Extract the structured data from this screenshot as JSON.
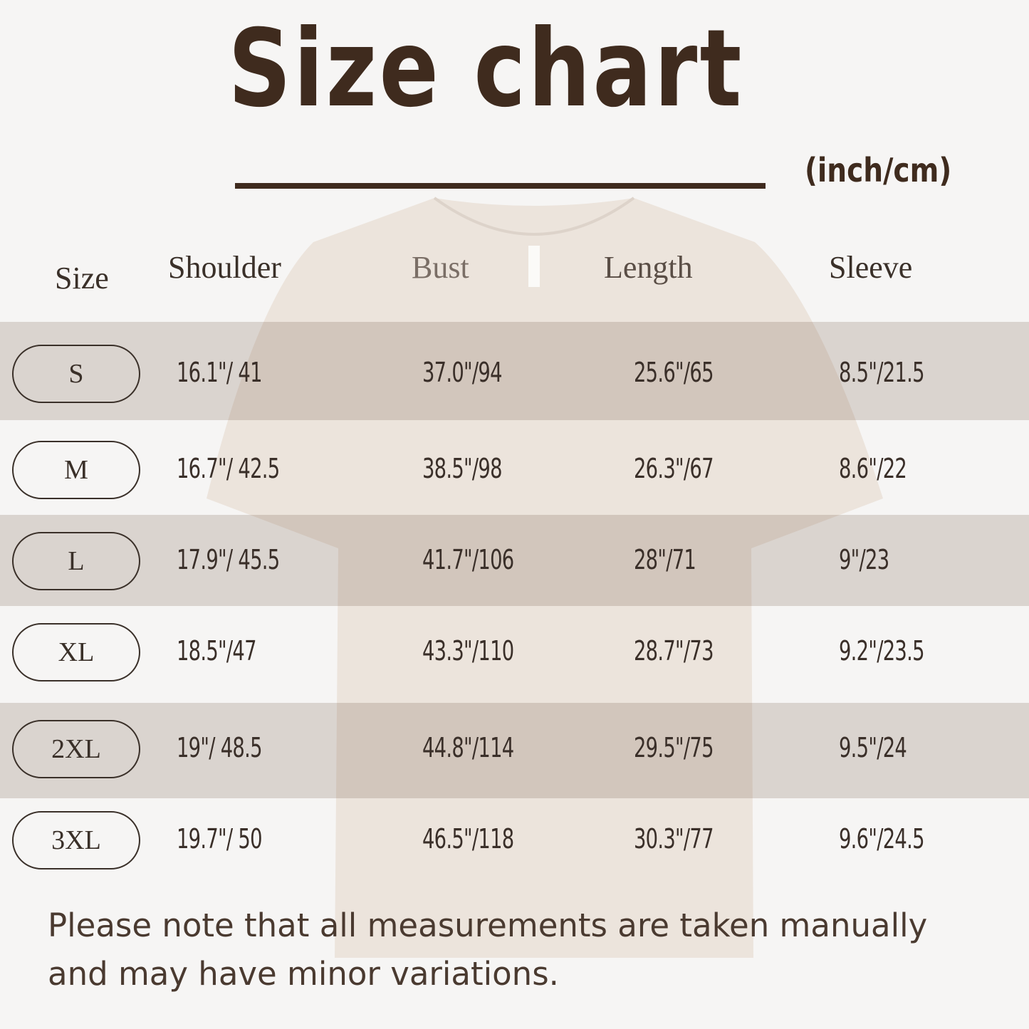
{
  "title": "Size chart",
  "unit": "(inch/cm)",
  "headers": [
    "Size",
    "Shoulder",
    "Bust",
    "Length",
    "Sleeve"
  ],
  "rows": [
    {
      "size": "S",
      "shoulder": "16.1\"/ 41",
      "bust": "37.0\"/94",
      "length": "25.6\"/65",
      "sleeve": "8.5\"/21.5"
    },
    {
      "size": "M",
      "shoulder": "16.7\"/ 42.5",
      "bust": "38.5\"/98",
      "length": "26.3\"/67",
      "sleeve": "8.6\"/22"
    },
    {
      "size": "L",
      "shoulder": "17.9\"/ 45.5",
      "bust": "41.7\"/106",
      "length": "28\"/71",
      "sleeve": "9\"/23"
    },
    {
      "size": "XL",
      "shoulder": "18.5\"/47",
      "bust": "43.3\"/110",
      "length": "28.7\"/73",
      "sleeve": "9.2\"/23.5"
    },
    {
      "size": "2XL",
      "shoulder": "19\"/ 48.5",
      "bust": "44.8\"/114",
      "length": "29.5\"/75",
      "sleeve": "9.5\"/24"
    },
    {
      "size": "3XL",
      "shoulder": "19.7\"/ 50",
      "bust": "46.5\"/118",
      "length": "30.3\"/77",
      "sleeve": "9.6\"/24.5"
    }
  ],
  "note_line1": "Please note that all measurements are taken manually",
  "note_line2": "and may have minor variations.",
  "colors": {
    "text": "#3f2b1e",
    "band": "#d9d0ca",
    "shirt": "#ece4dc"
  }
}
